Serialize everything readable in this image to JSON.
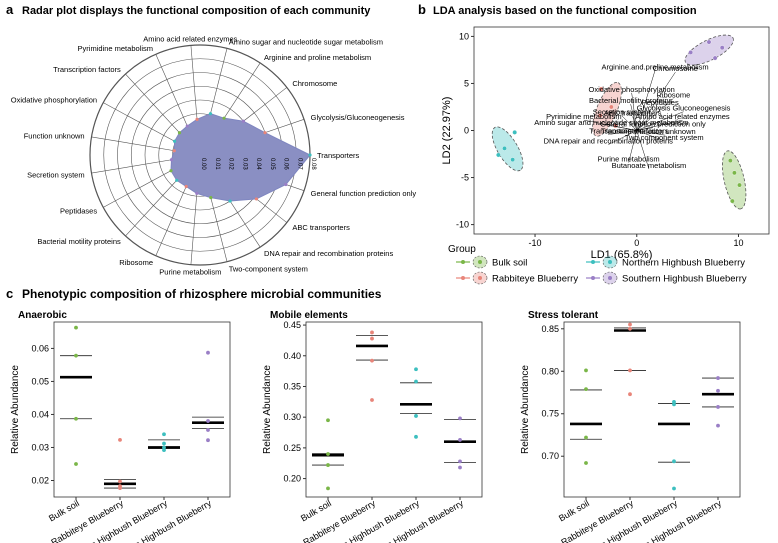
{
  "panels": {
    "a": {
      "letter": "a",
      "title": "Radar plot displays the functional composition of each community"
    },
    "b": {
      "letter": "b",
      "title": "LDA analysis based on the functional composition"
    },
    "c": {
      "letter": "c",
      "title": "Phenotypic composition of rhizosphere microbial communities"
    }
  },
  "colors": {
    "bulk": "#7ab648",
    "rabbiteye": "#e8857a",
    "northern": "#3dbfbf",
    "southern": "#9a7fc6",
    "radar_fill": "#8a8fc3",
    "grid": "#555555"
  },
  "chart_data": [
    {
      "id": "radar",
      "type": "radar",
      "title": "Radar plot displays the functional composition of each community",
      "axes": [
        "Transporters",
        "Glycolysis/Gluconeogenesis",
        "Chromosome",
        "Arginine and proline metabolism",
        "Amino sugar and nucleotide sugar metabolism",
        "Amino acid related enzymes",
        "Pyrimidine metabolism",
        "Transcription factors",
        "Oxidative phosphorylation",
        "Function unknown",
        "Secretion system",
        "Peptidases",
        "Bacterial motility proteins",
        "Ribosome",
        "Purine metabolism",
        "Two-component system",
        "DNA repair and recombination proteins",
        "ABC transporters",
        "General function prediction only"
      ],
      "radial_ticks": [
        "0.00",
        "0.01",
        "0.02",
        "0.03",
        "0.04",
        "0.05",
        "0.06",
        "0.07",
        "0.08"
      ],
      "rlim": [
        0,
        0.08
      ],
      "values": [
        0.08,
        0.05,
        0.04,
        0.032,
        0.031,
        0.026,
        0.023,
        0.022,
        0.021,
        0.019,
        0.021,
        0.024,
        0.025,
        0.025,
        0.028,
        0.032,
        0.04,
        0.052,
        0.066
      ]
    },
    {
      "id": "lda",
      "type": "scatter",
      "title": "LDA analysis based on the functional composition",
      "xlabel": "LD1 (65.8%)",
      "ylabel": "LD2 (22.97%)",
      "xlim": [
        -16,
        13
      ],
      "ylim": [
        -11,
        11
      ],
      "xticks": [
        -10,
        0,
        10
      ],
      "yticks": [
        -10,
        -5,
        0,
        5,
        10
      ],
      "legend_title": "Group",
      "groups": [
        {
          "name": "Bulk soil",
          "key": "bulk",
          "points": [
            [
              9.2,
              -3.2
            ],
            [
              9.6,
              -4.5
            ],
            [
              10.1,
              -5.8
            ],
            [
              9.4,
              -7.5
            ]
          ]
        },
        {
          "name": "Rabbiteye Blueberry",
          "key": "rabbiteye",
          "points": [
            [
              -3.5,
              4.4
            ],
            [
              -2.5,
              2.5
            ],
            [
              -3.6,
              1.6
            ],
            [
              -2.1,
              0.5
            ]
          ]
        },
        {
          "name": "Northern Highbush Blueberry",
          "key": "northern",
          "points": [
            [
              -12.0,
              -0.2
            ],
            [
              -13.0,
              -1.9
            ],
            [
              -12.2,
              -3.1
            ],
            [
              -13.6,
              -2.6
            ]
          ]
        },
        {
          "name": "Southern Highbush Blueberry",
          "key": "southern",
          "points": [
            [
              5.3,
              8.3
            ],
            [
              7.1,
              9.4
            ],
            [
              8.4,
              8.8
            ],
            [
              7.7,
              7.7
            ]
          ]
        }
      ],
      "loadings": [
        {
          "label": "Arginine.and.proline.metabolism",
          "x": 1.8,
          "y": 6.4
        },
        {
          "label": "Chromosome",
          "x": 3.8,
          "y": 6.2
        },
        {
          "label": "Oxidative phosphorylation",
          "x": -0.5,
          "y": 4.0
        },
        {
          "label": "Ribosome",
          "x": 3.6,
          "y": 3.4
        },
        {
          "label": "Bacterial motility proteins",
          "x": -0.6,
          "y": 2.8
        },
        {
          "label": "Peptidases",
          "x": 2.3,
          "y": 2.6
        },
        {
          "label": "Glycolysis Gluconeogenesis",
          "x": 4.6,
          "y": 2.0
        },
        {
          "label": "Secretion system",
          "x": -1.5,
          "y": 1.6
        },
        {
          "label": "ABC transporters",
          "x": -0.4,
          "y": 1.5
        },
        {
          "label": "Amino acid related enzymes",
          "x": 4.5,
          "y": 1.1
        },
        {
          "label": "Pyrimidine metabolism",
          "x": -5.2,
          "y": 1.1
        },
        {
          "label": "Amino sugar and nucleotide sugar metabolism",
          "x": -2.5,
          "y": 0.5
        },
        {
          "label": "General function prediction only",
          "x": 1.6,
          "y": 0.3
        },
        {
          "label": "Transporters",
          "x": -2.6,
          "y": -0.4
        },
        {
          "label": "Transcription factors",
          "x": -0.2,
          "y": -0.4
        },
        {
          "label": "Function unknown",
          "x": 2.8,
          "y": -0.5
        },
        {
          "label": "Two component system",
          "x": 2.7,
          "y": -1.1
        },
        {
          "label": "DNA repair and recombination proteins",
          "x": -2.8,
          "y": -1.5
        },
        {
          "label": "Purine metabolism",
          "x": -0.8,
          "y": -3.4
        },
        {
          "label": "Butanoate metabolism",
          "x": 1.2,
          "y": -4.1
        }
      ]
    },
    {
      "id": "anaerobic",
      "type": "scatter",
      "title": "Anaerobic",
      "ylabel": "Relative Abundance",
      "ylim": [
        0.015,
        0.068
      ],
      "yticks": [
        0.02,
        0.03,
        0.04,
        0.05,
        0.06
      ],
      "ytick_labels": [
        "0.02",
        "0.03",
        "0.04",
        "0.05",
        "0.06"
      ],
      "categories": [
        "Bulk soil",
        "Rabbiteye Blueberry",
        "Northern Highbush Blueberry",
        "Southern Highbush Blueberry"
      ],
      "points": [
        [
          0.0663,
          0.0578,
          0.0387,
          0.025
        ],
        [
          0.0323,
          0.0197,
          0.0183,
          0.0177
        ],
        [
          0.034,
          0.0312,
          0.03,
          0.0292
        ],
        [
          0.0587,
          0.038,
          0.0353,
          0.0322
        ]
      ],
      "means": [
        0.0513,
        0.019,
        0.03,
        0.0375
      ],
      "upper": [
        0.0578,
        0.0203,
        0.0323,
        0.0392
      ],
      "lower": [
        0.0387,
        0.0177,
        0.0297,
        0.0357
      ]
    },
    {
      "id": "mobile",
      "type": "scatter",
      "title": "Mobile elements",
      "ylabel": "Relative Abundance",
      "ylim": [
        0.17,
        0.455
      ],
      "yticks": [
        0.2,
        0.25,
        0.3,
        0.35,
        0.4,
        0.45
      ],
      "ytick_labels": [
        "0.20",
        "0.25",
        "0.30",
        "0.35",
        "0.40",
        "0.45"
      ],
      "categories": [
        "Bulk soil",
        "Rabbiteye Blueberry",
        "Northern Highbush Blueberry",
        "Southern Highbush Blueberry"
      ],
      "points": [
        [
          0.295,
          0.24,
          0.222,
          0.184
        ],
        [
          0.438,
          0.428,
          0.392,
          0.328
        ],
        [
          0.378,
          0.358,
          0.302,
          0.268
        ],
        [
          0.298,
          0.263,
          0.228,
          0.218
        ]
      ],
      "means": [
        0.238,
        0.416,
        0.321,
        0.26
      ],
      "upper": [
        0.241,
        0.433,
        0.356,
        0.296
      ],
      "lower": [
        0.222,
        0.393,
        0.306,
        0.226
      ]
    },
    {
      "id": "stress",
      "type": "scatter",
      "title": "Stress tolerant",
      "ylabel": "Relative Abundance",
      "ylim": [
        0.652,
        0.858
      ],
      "yticks": [
        0.7,
        0.75,
        0.8,
        0.85
      ],
      "ytick_labels": [
        "0.70",
        "0.75",
        "0.80",
        "0.85"
      ],
      "categories": [
        "Bulk soil",
        "Rabbiteye Blueberry",
        "Northern Highbush Blueberry",
        "Southern Highbush Blueberry"
      ],
      "points": [
        [
          0.801,
          0.779,
          0.722,
          0.692
        ],
        [
          0.855,
          0.85,
          0.801,
          0.773
        ],
        [
          0.764,
          0.761,
          0.694,
          0.662
        ],
        [
          0.792,
          0.777,
          0.758,
          0.736
        ]
      ],
      "means": [
        0.738,
        0.848,
        0.738,
        0.773
      ],
      "upper": [
        0.778,
        0.851,
        0.762,
        0.792
      ],
      "lower": [
        0.72,
        0.801,
        0.693,
        0.758
      ]
    }
  ]
}
